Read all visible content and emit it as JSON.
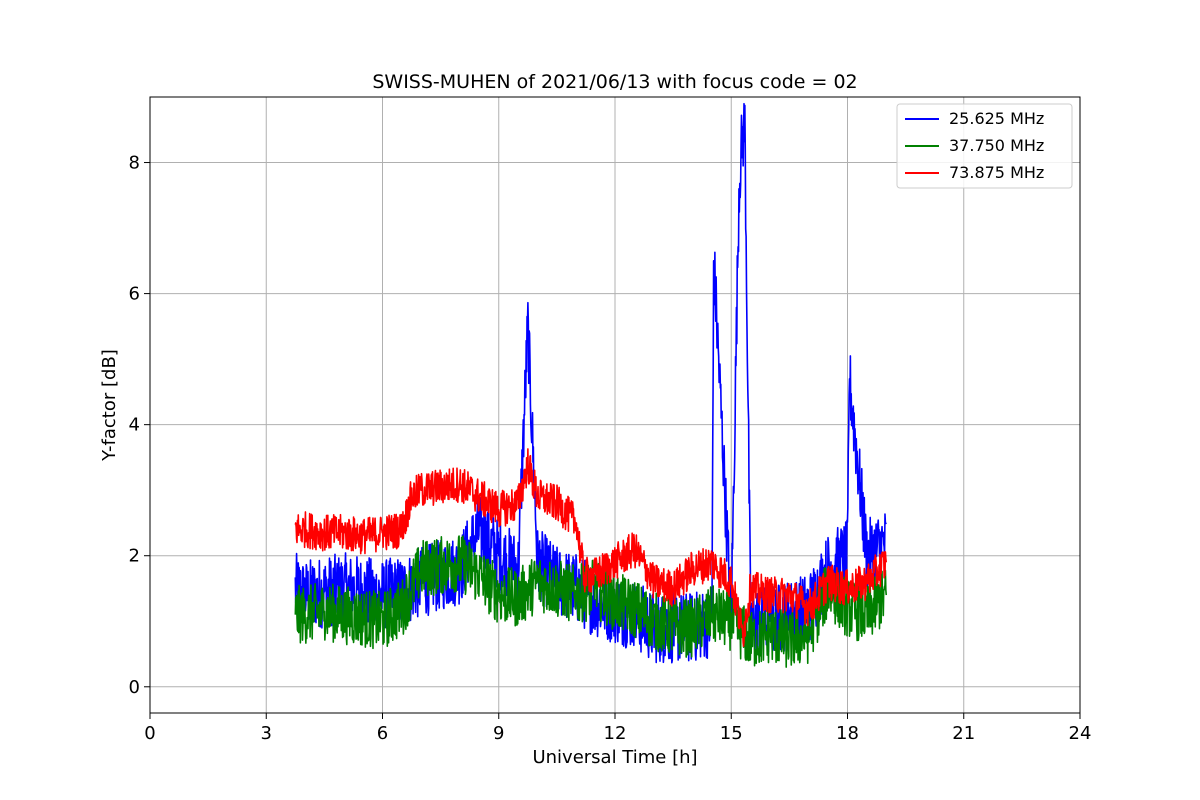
{
  "chart_data": {
    "type": "line",
    "title": "SWISS-MUHEN of 2021/06/13 with focus code = 02",
    "xlabel": "Universal Time [h]",
    "ylabel": "Y-factor [dB]",
    "xlim": [
      0,
      24
    ],
    "ylim": [
      -0.4,
      9.0
    ],
    "xticks": [
      0,
      3,
      6,
      9,
      12,
      15,
      18,
      21,
      24
    ],
    "yticks": [
      0,
      2,
      4,
      6,
      8
    ],
    "grid": true,
    "legend_position": "top-right",
    "series": [
      {
        "name": "25.625 MHz",
        "color": "#0000ff",
        "x": [
          3.75,
          4.0,
          4.5,
          5.0,
          5.5,
          6.0,
          6.5,
          7.0,
          7.5,
          8.0,
          8.5,
          9.0,
          9.5,
          9.75,
          10.0,
          10.5,
          11.0,
          11.5,
          12.0,
          12.5,
          13.0,
          13.5,
          14.0,
          14.5,
          14.55,
          15.0,
          15.2,
          15.25,
          15.35,
          15.5,
          16.0,
          16.5,
          17.0,
          17.5,
          18.0,
          18.05,
          18.5,
          19.0
        ],
        "y": [
          1.5,
          1.4,
          1.45,
          1.5,
          1.45,
          1.4,
          1.45,
          1.6,
          1.7,
          1.8,
          2.4,
          2.0,
          1.8,
          5.5,
          1.9,
          1.6,
          1.5,
          1.3,
          1.2,
          1.1,
          0.9,
          0.9,
          0.9,
          1.0,
          6.5,
          1.0,
          7.6,
          8.15,
          8.6,
          1.0,
          1.0,
          1.1,
          1.2,
          1.8,
          2.0,
          4.7,
          2.0,
          2.2
        ]
      },
      {
        "name": "37.750 MHz",
        "color": "#008000",
        "x": [
          3.75,
          4.0,
          4.5,
          5.0,
          5.5,
          6.0,
          6.5,
          7.0,
          7.5,
          8.0,
          8.5,
          9.0,
          9.5,
          10.0,
          10.5,
          11.0,
          11.5,
          12.0,
          12.5,
          13.0,
          13.5,
          14.0,
          14.5,
          15.0,
          15.5,
          16.0,
          16.5,
          17.0,
          17.5,
          18.0,
          18.5,
          19.0
        ],
        "y": [
          1.1,
          1.1,
          1.15,
          1.1,
          1.05,
          1.0,
          1.2,
          1.8,
          1.85,
          1.9,
          1.7,
          1.4,
          1.35,
          1.6,
          1.5,
          1.4,
          1.5,
          1.3,
          1.2,
          1.0,
          0.9,
          0.9,
          1.1,
          1.0,
          0.7,
          0.8,
          0.7,
          0.8,
          1.5,
          1.2,
          1.1,
          1.4
        ]
      },
      {
        "name": "73.875 MHz",
        "color": "#ff0000",
        "x": [
          3.75,
          4.0,
          4.5,
          5.0,
          5.5,
          6.0,
          6.5,
          6.75,
          7.0,
          7.5,
          8.0,
          8.5,
          9.0,
          9.5,
          9.75,
          10.0,
          10.5,
          11.0,
          11.2,
          11.5,
          12.0,
          12.5,
          13.0,
          13.5,
          14.0,
          14.5,
          15.0,
          15.3,
          15.5,
          16.0,
          16.5,
          17.0,
          17.5,
          18.0,
          18.5,
          19.0
        ],
        "y": [
          2.4,
          2.4,
          2.35,
          2.35,
          2.3,
          2.35,
          2.4,
          2.9,
          3.0,
          3.05,
          3.1,
          2.9,
          2.7,
          2.8,
          3.4,
          2.9,
          2.8,
          2.5,
          1.7,
          1.7,
          1.9,
          2.1,
          1.6,
          1.5,
          1.8,
          1.9,
          1.6,
          0.8,
          1.5,
          1.4,
          1.4,
          1.2,
          1.6,
          1.5,
          1.6,
          1.9
        ]
      }
    ]
  }
}
